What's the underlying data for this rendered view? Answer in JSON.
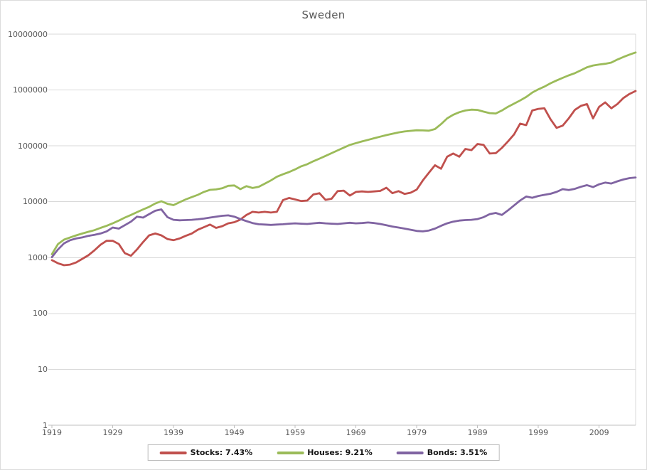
{
  "chart_data": {
    "type": "line",
    "title": "Sweden",
    "y_scale": "log",
    "ylim": [
      1,
      10000000
    ],
    "y_ticks": [
      1,
      10,
      100,
      1000,
      10000,
      100000,
      1000000,
      10000000
    ],
    "x_ticks": [
      1919,
      1929,
      1939,
      1949,
      1959,
      1969,
      1979,
      1989,
      1999,
      2009
    ],
    "x_range": [
      1919,
      2015
    ],
    "grid": "horizontal",
    "legend_position": "bottom",
    "grid_color": "#d9d9d9",
    "axis_color": "#bfbfbf",
    "text_color": "#595959",
    "x": [
      1919,
      1920,
      1921,
      1922,
      1923,
      1924,
      1925,
      1926,
      1927,
      1928,
      1929,
      1930,
      1931,
      1932,
      1933,
      1934,
      1935,
      1936,
      1937,
      1938,
      1939,
      1940,
      1941,
      1942,
      1943,
      1944,
      1945,
      1946,
      1947,
      1948,
      1949,
      1950,
      1951,
      1952,
      1953,
      1954,
      1955,
      1956,
      1957,
      1958,
      1959,
      1960,
      1961,
      1962,
      1963,
      1964,
      1965,
      1966,
      1967,
      1968,
      1969,
      1970,
      1971,
      1972,
      1973,
      1974,
      1975,
      1976,
      1977,
      1978,
      1979,
      1980,
      1981,
      1982,
      1983,
      1984,
      1985,
      1986,
      1987,
      1988,
      1989,
      1990,
      1991,
      1992,
      1993,
      1994,
      1995,
      1996,
      1997,
      1998,
      1999,
      2000,
      2001,
      2002,
      2003,
      2004,
      2005,
      2006,
      2007,
      2008,
      2009,
      2010,
      2011,
      2012,
      2013,
      2014,
      2015
    ],
    "series": [
      {
        "name": "Stocks: 7.43%",
        "key": "stocks",
        "color": "#C0504D",
        "values": [
          900,
          790,
          730,
          750,
          820,
          950,
          1100,
          1350,
          1700,
          2000,
          2000,
          1750,
          1200,
          1080,
          1400,
          1900,
          2500,
          2700,
          2500,
          2150,
          2050,
          2200,
          2450,
          2700,
          3150,
          3500,
          3900,
          3400,
          3650,
          4100,
          4300,
          4800,
          5800,
          6600,
          6400,
          6600,
          6400,
          6600,
          10700,
          11700,
          11000,
          10300,
          10500,
          13500,
          14200,
          10800,
          11300,
          15500,
          15800,
          12900,
          15000,
          15300,
          15000,
          15300,
          15600,
          17800,
          14200,
          15500,
          13800,
          14500,
          16500,
          24000,
          33000,
          45000,
          39000,
          64000,
          73000,
          64000,
          88000,
          84000,
          108000,
          104000,
          73000,
          74000,
          92000,
          120000,
          160000,
          250000,
          235000,
          430000,
          460000,
          470000,
          300000,
          210000,
          230000,
          310000,
          440000,
          520000,
          560000,
          310000,
          500000,
          600000,
          470000,
          560000,
          720000,
          850000,
          960000
        ]
      },
      {
        "name": "Houses: 9.21%",
        "key": "houses",
        "color": "#9BBB59",
        "values": [
          1150,
          1750,
          2100,
          2300,
          2500,
          2700,
          2900,
          3100,
          3400,
          3700,
          4100,
          4600,
          5200,
          5800,
          6500,
          7300,
          8100,
          9300,
          10200,
          9200,
          8700,
          9800,
          11000,
          12100,
          13300,
          15000,
          16300,
          16600,
          17400,
          19300,
          19600,
          16800,
          19000,
          17600,
          18500,
          21000,
          24000,
          28000,
          31000,
          34000,
          38000,
          43000,
          47000,
          53000,
          59000,
          66000,
          74000,
          83000,
          93000,
          104000,
          112000,
          120000,
          128000,
          137000,
          146000,
          156000,
          165000,
          174000,
          181000,
          186000,
          190000,
          189000,
          187000,
          200000,
          245000,
          310000,
          360000,
          400000,
          430000,
          445000,
          440000,
          410000,
          385000,
          380000,
          430000,
          500000,
          570000,
          650000,
          750000,
          900000,
          1030000,
          1150000,
          1320000,
          1480000,
          1650000,
          1830000,
          2000000,
          2250000,
          2550000,
          2750000,
          2850000,
          2950000,
          3100000,
          3500000,
          3900000,
          4300000,
          4700000
        ]
      },
      {
        "name": "Bonds: 3.51%",
        "key": "bonds",
        "color": "#8064A2",
        "values": [
          1020,
          1400,
          1800,
          2050,
          2200,
          2300,
          2450,
          2550,
          2700,
          2950,
          3450,
          3300,
          3800,
          4400,
          5400,
          5200,
          6000,
          6900,
          7300,
          5300,
          4750,
          4650,
          4700,
          4750,
          4850,
          5000,
          5200,
          5400,
          5600,
          5700,
          5400,
          4900,
          4500,
          4150,
          3950,
          3900,
          3850,
          3900,
          3950,
          4050,
          4100,
          4050,
          4000,
          4100,
          4200,
          4100,
          4050,
          4000,
          4100,
          4200,
          4100,
          4150,
          4250,
          4150,
          4000,
          3800,
          3600,
          3450,
          3300,
          3150,
          3000,
          2950,
          3050,
          3300,
          3700,
          4100,
          4400,
          4600,
          4700,
          4750,
          4900,
          5300,
          6000,
          6300,
          5800,
          7000,
          8600,
          10500,
          12400,
          11800,
          12700,
          13300,
          13900,
          15000,
          16800,
          16200,
          17000,
          18500,
          19800,
          18300,
          20500,
          22000,
          21200,
          23200,
          25000,
          26500,
          27200
        ]
      }
    ]
  }
}
